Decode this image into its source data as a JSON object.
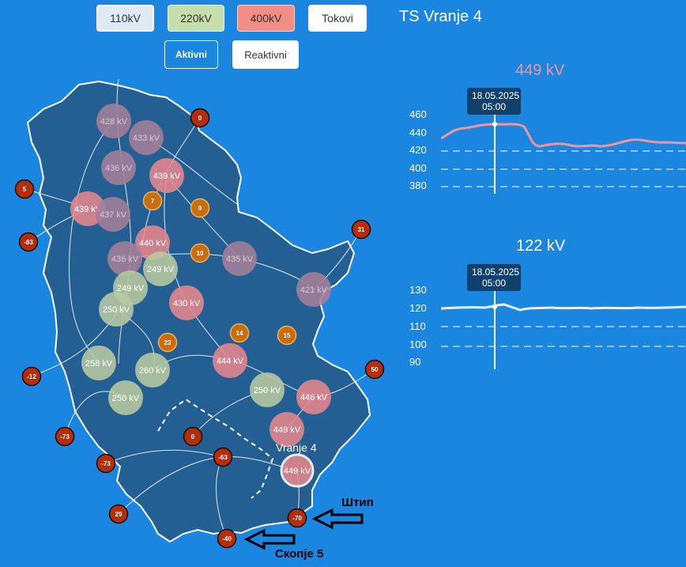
{
  "buttons": {
    "kv110": "110kV",
    "kv220": "220kV",
    "kv400": "400kV",
    "tokovi": "Tokovi",
    "aktivni": "Aktivni",
    "reaktivni": "Reaktivni"
  },
  "station_title": "TS Vranje 4",
  "map": {
    "nodes": [
      {
        "label": "428 kV",
        "level": "110"
      },
      {
        "label": "433 kV",
        "level": "110"
      },
      {
        "label": "436 kV",
        "level": "110"
      },
      {
        "label": "439 kV",
        "level": "400"
      },
      {
        "label": "439 kV",
        "level": "400"
      },
      {
        "label": "437 kV",
        "level": "110"
      },
      {
        "label": "440 kV",
        "level": "400"
      },
      {
        "label": "436 kV",
        "level": "110"
      },
      {
        "label": "249 kV",
        "level": "220"
      },
      {
        "label": "249 kV",
        "level": "220"
      },
      {
        "label": "250 kV",
        "level": "220"
      },
      {
        "label": "435 kV",
        "level": "110"
      },
      {
        "label": "430 kV",
        "level": "400"
      },
      {
        "label": "421 kV",
        "level": "110"
      },
      {
        "label": "258 kV",
        "level": "220"
      },
      {
        "label": "260 kV",
        "level": "220"
      },
      {
        "label": "444 kV",
        "level": "400"
      },
      {
        "label": "250 kV",
        "level": "220"
      },
      {
        "label": "250 kV",
        "level": "220"
      },
      {
        "label": "446 kV",
        "level": "400"
      },
      {
        "label": "449 kV",
        "level": "400"
      },
      {
        "label": "449 kV",
        "level": "400"
      }
    ],
    "flows_orange": [
      "7",
      "9",
      "10",
      "23",
      "14",
      "15"
    ],
    "flows_red": [
      "0",
      "5",
      "-83",
      "31",
      "-12",
      "50",
      "-73",
      "0",
      "-73",
      "-63",
      "29",
      "-70",
      "-40"
    ],
    "selected_label": "Vranje 4",
    "arrow_labels": {
      "stip": "Штип",
      "skopje": "Скопје 5"
    }
  },
  "chart1": {
    "title": "449 kV",
    "tooltip_date": "18.05.2025",
    "tooltip_time": "05:00",
    "yticks": [
      "460",
      "440",
      "420",
      "400",
      "380"
    ]
  },
  "chart2": {
    "title": "122 kV",
    "tooltip_date": "18.05.2025",
    "tooltip_time": "05:00",
    "yticks": [
      "130",
      "120",
      "110",
      "100",
      "90"
    ]
  },
  "colors": {
    "background": "#1b86e0",
    "map_fill": "#245f93",
    "kv110": "#a47f99",
    "kv220": "#b7ca9f",
    "kv400": "#e6888c",
    "flow_orange": "#c96c12",
    "flow_red": "#b42d0c",
    "chart1_line": "#f09599"
  }
}
